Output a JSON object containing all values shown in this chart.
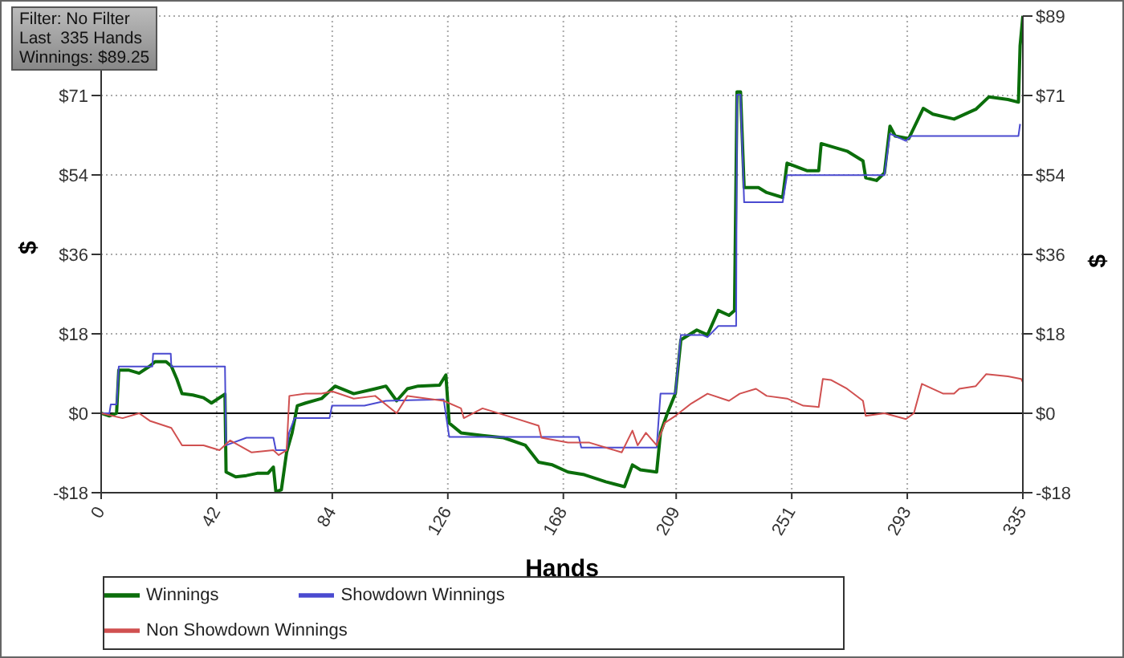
{
  "chart_data": {
    "type": "line",
    "xlabel": "Hands",
    "ylabel": "$",
    "y2label": "$",
    "annotations": [
      "Filter: No Filter",
      "Last  335 Hands",
      "Winnings: $89.25"
    ],
    "xlim": [
      0,
      335
    ],
    "xticks": [
      0,
      42,
      84,
      126,
      168,
      209,
      251,
      293,
      335
    ],
    "ylim": [
      -17.85,
      89.25
    ],
    "yticks": [
      {
        "value": -17.85,
        "label": "-$18"
      },
      {
        "value": 0,
        "label": "$0"
      },
      {
        "value": 17.85,
        "label": "$18"
      },
      {
        "value": 35.7,
        "label": "$36"
      },
      {
        "value": 53.55,
        "label": "$54"
      },
      {
        "value": 71.4,
        "label": "$71"
      }
    ],
    "y2lim": [
      -17.85,
      89.25
    ],
    "y2ticks": [
      {
        "value": -17.85,
        "label": "-$18"
      },
      {
        "value": 0,
        "label": "$0"
      },
      {
        "value": 17.85,
        "label": "$18"
      },
      {
        "value": 35.7,
        "label": "$36"
      },
      {
        "value": 53.55,
        "label": "$54"
      },
      {
        "value": 71.4,
        "label": "$71"
      },
      {
        "value": 89.25,
        "label": "$89"
      }
    ],
    "grid": true,
    "legend": "bottom",
    "ref_lines": [
      {
        "axis": "y",
        "value": 0,
        "color": "#000000"
      }
    ],
    "series": [
      {
        "name": "Winnings",
        "color": "#0b6e0b",
        "x": [
          0,
          3,
          5.6,
          6.4,
          9.9,
          13.8,
          17.7,
          19.6,
          23.6,
          25.5,
          27.5,
          29.4,
          33.3,
          37.2,
          40.1,
          45,
          45.4,
          48.9,
          52.8,
          56.7,
          60.6,
          62.6,
          63.5,
          65.5,
          67.4,
          69.4,
          71.3,
          74.3,
          80.1,
          85,
          91.8,
          99.6,
          103.5,
          107.4,
          111.3,
          115.2,
          123,
          125.3,
          126.5,
          130.8,
          138.6,
          146.3,
          154.2,
          159,
          164,
          169.7,
          175.6,
          183.4,
          190.2,
          193.1,
          196,
          201.9,
          203.3,
          205.8,
          208.7,
          210.7,
          216.5,
          220.4,
          224.3,
          228.2,
          230.2,
          231.1,
          232.4,
          233.7,
          238.9,
          241.9,
          247.7,
          249.3,
          256.5,
          260.8,
          261.7,
          271.1,
          276.9,
          277.9,
          281.8,
          284.7,
          286.7,
          288.6,
          293.5,
          298.8,
          302.3,
          310,
          317.9,
          322.7,
          329.6,
          333.4,
          334,
          335
        ],
        "values": [
          0,
          -0.6,
          0,
          9.7,
          9.7,
          9,
          10.6,
          11.6,
          11.6,
          10.6,
          7.7,
          4.4,
          4.1,
          3.5,
          2.3,
          4.3,
          -13.2,
          -14.3,
          -14,
          -13.5,
          -13.5,
          -12.1,
          -17.6,
          -17.2,
          -8.8,
          -4.4,
          1.7,
          2.3,
          3.3,
          6.1,
          4.4,
          5.5,
          6.1,
          2.8,
          5.5,
          6.1,
          6.3,
          8.6,
          -2.2,
          -4.4,
          -5,
          -5.5,
          -7.2,
          -11,
          -11.6,
          -13.2,
          -13.8,
          -15.4,
          -16.5,
          -11.6,
          -12.7,
          -13.2,
          -4.4,
          0,
          4.4,
          16.5,
          18.7,
          17.6,
          23.1,
          22,
          23.1,
          72.2,
          72.2,
          50.7,
          50.7,
          49.6,
          48.5,
          56.2,
          54.5,
          54.5,
          60.6,
          58.9,
          56.7,
          52.9,
          52.3,
          54,
          64.5,
          62.3,
          61.7,
          68.5,
          67.2,
          66.1,
          68.3,
          71.1,
          70.5,
          69.9,
          82.6,
          89.25
        ]
      },
      {
        "name": "Showdown Winnings",
        "color": "#4a4ad0",
        "x": [
          0,
          3,
          3.5,
          5.6,
          6.4,
          18.6,
          18.9,
          25.3,
          25.5,
          45,
          45.4,
          52.8,
          62.6,
          63.5,
          67.4,
          68.3,
          70.3,
          83,
          83.9,
          95.7,
          103.5,
          124.5,
          126.5,
          173.6,
          174.5,
          201.9,
          203.3,
          208.7,
          210.7,
          218.5,
          220.4,
          224.3,
          230.8,
          231.1,
          232.4,
          233.7,
          247.7,
          249.3,
          284.7,
          286.7,
          292.5,
          294.5,
          333.4,
          334
        ],
        "values": [
          0,
          0,
          2,
          2,
          10.5,
          10.5,
          13.4,
          13.4,
          10.5,
          10.5,
          -7.2,
          -5.5,
          -5.5,
          -8.3,
          -8.3,
          -4.4,
          -1.1,
          -1.1,
          1.7,
          1.7,
          2.8,
          3.1,
          -5.3,
          -5.3,
          -7.7,
          -7.7,
          4.4,
          4.4,
          17.6,
          17.6,
          17.1,
          19.6,
          19.6,
          71.6,
          71.6,
          47.4,
          47.4,
          53.5,
          53.5,
          62.8,
          61.2,
          62.3,
          62.3,
          65
        ]
      },
      {
        "name": "Non Showdown Winnings",
        "color": "#d05050",
        "x": [
          0,
          7.8,
          13.8,
          17.7,
          25.5,
          29.4,
          37.2,
          43,
          46.9,
          54.7,
          62.6,
          64.5,
          67.4,
          68.4,
          74.3,
          80.1,
          84,
          91.8,
          99.6,
          107.4,
          111.3,
          124.5,
          130.8,
          131.8,
          138.6,
          150.3,
          159,
          160,
          169.7,
          177.5,
          189.2,
          193.1,
          195,
          198,
          201.9,
          204.8,
          208.7,
          214.5,
          220.4,
          228.2,
          232.1,
          238,
          241.9,
          249.3,
          255.2,
          260.8,
          262.3,
          265.2,
          271.1,
          276.9,
          277.9,
          284.7,
          292.5,
          295.4,
          298.3,
          306.1,
          310,
          311.9,
          317.9,
          321.7,
          329.6,
          334.4,
          335
        ],
        "values": [
          0,
          -1.1,
          0,
          -1.7,
          -3.3,
          -7.2,
          -7.2,
          -8.3,
          -6.1,
          -8.8,
          -8.3,
          -9.4,
          -8.3,
          3.9,
          4.4,
          4.4,
          4.9,
          3.3,
          3.9,
          0,
          3.9,
          2.8,
          1.1,
          -1.1,
          1.1,
          -1.1,
          -2.8,
          -5.5,
          -6.6,
          -6.6,
          -8.8,
          -3.9,
          -7.2,
          -4.4,
          -7.2,
          -2.2,
          -0.6,
          2.2,
          4.4,
          2.8,
          4.4,
          5.5,
          3.9,
          3.3,
          1.7,
          1.4,
          7.7,
          7.5,
          5.5,
          2.8,
          -0.6,
          0,
          -1.3,
          0,
          6.6,
          4.4,
          4.4,
          5.5,
          6.1,
          8.8,
          8.3,
          7.7,
          7
        ]
      }
    ]
  }
}
